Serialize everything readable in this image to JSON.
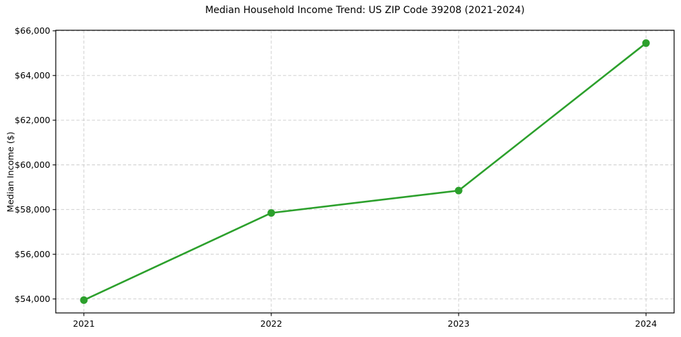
{
  "chart_data": {
    "type": "line",
    "title": "Median Household Income Trend: US ZIP Code 39208 (2021-2024)",
    "xlabel": "",
    "ylabel": "Median Income ($)",
    "x": [
      2021,
      2022,
      2023,
      2024
    ],
    "series": [
      {
        "name": "Median Income",
        "values": [
          53950,
          57850,
          58850,
          65450
        ]
      }
    ],
    "xtick_labels": [
      "2021",
      "2022",
      "2023",
      "2024"
    ],
    "ytick_values": [
      54000,
      56000,
      58000,
      60000,
      62000,
      64000,
      66000
    ],
    "ytick_labels": [
      "$54,000",
      "$56,000",
      "$58,000",
      "$60,000",
      "$62,000",
      "$64,000",
      "$66,000"
    ],
    "xlim": [
      2020.85,
      2024.15
    ],
    "ylim": [
      53375,
      66025
    ],
    "grid": true,
    "grid_style": "dashed",
    "legend_position": "none",
    "colors": {
      "line": "#2ca02c",
      "marker": "#2ca02c",
      "grid": "#c9c9c9",
      "axis": "#000000",
      "text": "#000000",
      "background": "#ffffff"
    }
  }
}
